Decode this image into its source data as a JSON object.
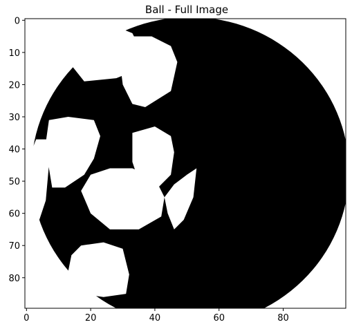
{
  "chart_data": {
    "type": "heatmap",
    "title": "Ball - Full Image",
    "xlabel": "",
    "ylabel": "",
    "image_shape": [
      90,
      100
    ],
    "xlim": [
      -0.5,
      99.5
    ],
    "ylim": [
      89.5,
      -0.5
    ],
    "x_ticks": [
      0,
      20,
      40,
      60,
      80
    ],
    "y_ticks": [
      0,
      10,
      20,
      30,
      40,
      50,
      60,
      70,
      80
    ],
    "colormap": "binary",
    "grid": false,
    "colors": {
      "foreground": "#000000",
      "background": "#ffffff"
    },
    "ball": {
      "center": [
        51,
        47
      ],
      "radius": [
        49.5,
        48
      ]
    },
    "white_patches": [
      {
        "name": "top-center-patch",
        "points": [
          [
            14,
            8
          ],
          [
            20,
            3
          ],
          [
            28,
            2
          ],
          [
            33,
            4
          ],
          [
            36,
            10
          ],
          [
            33,
            16
          ],
          [
            28,
            18
          ],
          [
            18,
            19
          ],
          [
            14,
            14
          ]
        ]
      },
      {
        "name": "top-right-patch",
        "points": [
          [
            30,
            5
          ],
          [
            39,
            5
          ],
          [
            45,
            8
          ],
          [
            47,
            13
          ],
          [
            45,
            22
          ],
          [
            37,
            27
          ],
          [
            33,
            26
          ],
          [
            30,
            20
          ],
          [
            29,
            12
          ]
        ]
      },
      {
        "name": "top-left-sliver",
        "points": [
          [
            9,
            9
          ],
          [
            12,
            8
          ],
          [
            13,
            13
          ],
          [
            9,
            14
          ],
          [
            8,
            12
          ]
        ]
      },
      {
        "name": "left-center-patch",
        "points": [
          [
            7,
            31
          ],
          [
            13,
            30
          ],
          [
            21,
            31
          ],
          [
            23,
            36
          ],
          [
            21,
            43
          ],
          [
            18,
            48
          ],
          [
            12,
            52
          ],
          [
            8,
            52
          ],
          [
            7,
            46
          ],
          [
            6,
            38
          ]
        ]
      },
      {
        "name": "far-left-patch",
        "points": [
          [
            3,
            37
          ],
          [
            7,
            37
          ],
          [
            7,
            45
          ],
          [
            6,
            56
          ],
          [
            4,
            62
          ],
          [
            2,
            58
          ],
          [
            1,
            49
          ],
          [
            1,
            42
          ]
        ]
      },
      {
        "name": "center-patch",
        "points": [
          [
            26,
            46
          ],
          [
            33,
            46
          ],
          [
            40,
            49
          ],
          [
            43,
            55
          ],
          [
            42,
            61
          ],
          [
            35,
            65
          ],
          [
            26,
            65
          ],
          [
            20,
            60
          ],
          [
            17,
            53
          ],
          [
            20,
            48
          ]
        ]
      },
      {
        "name": "right-patch",
        "points": [
          [
            33,
            35
          ],
          [
            40,
            33
          ],
          [
            45,
            36
          ],
          [
            46,
            41
          ],
          [
            45,
            48
          ],
          [
            41,
            52
          ],
          [
            35,
            50
          ],
          [
            33,
            44
          ]
        ]
      },
      {
        "name": "far-right-patch",
        "points": [
          [
            46,
            51
          ],
          [
            50,
            48
          ],
          [
            53,
            46
          ],
          [
            52,
            55
          ],
          [
            49,
            62
          ],
          [
            46,
            65
          ],
          [
            44,
            60
          ],
          [
            43,
            55
          ]
        ]
      },
      {
        "name": "bottom-center-patch",
        "points": [
          [
            17,
            70
          ],
          [
            24,
            69
          ],
          [
            30,
            71
          ],
          [
            32,
            79
          ],
          [
            31,
            85
          ],
          [
            24,
            86
          ],
          [
            17,
            85
          ],
          [
            14,
            82
          ],
          [
            13,
            78
          ],
          [
            14,
            73
          ]
        ]
      }
    ]
  }
}
